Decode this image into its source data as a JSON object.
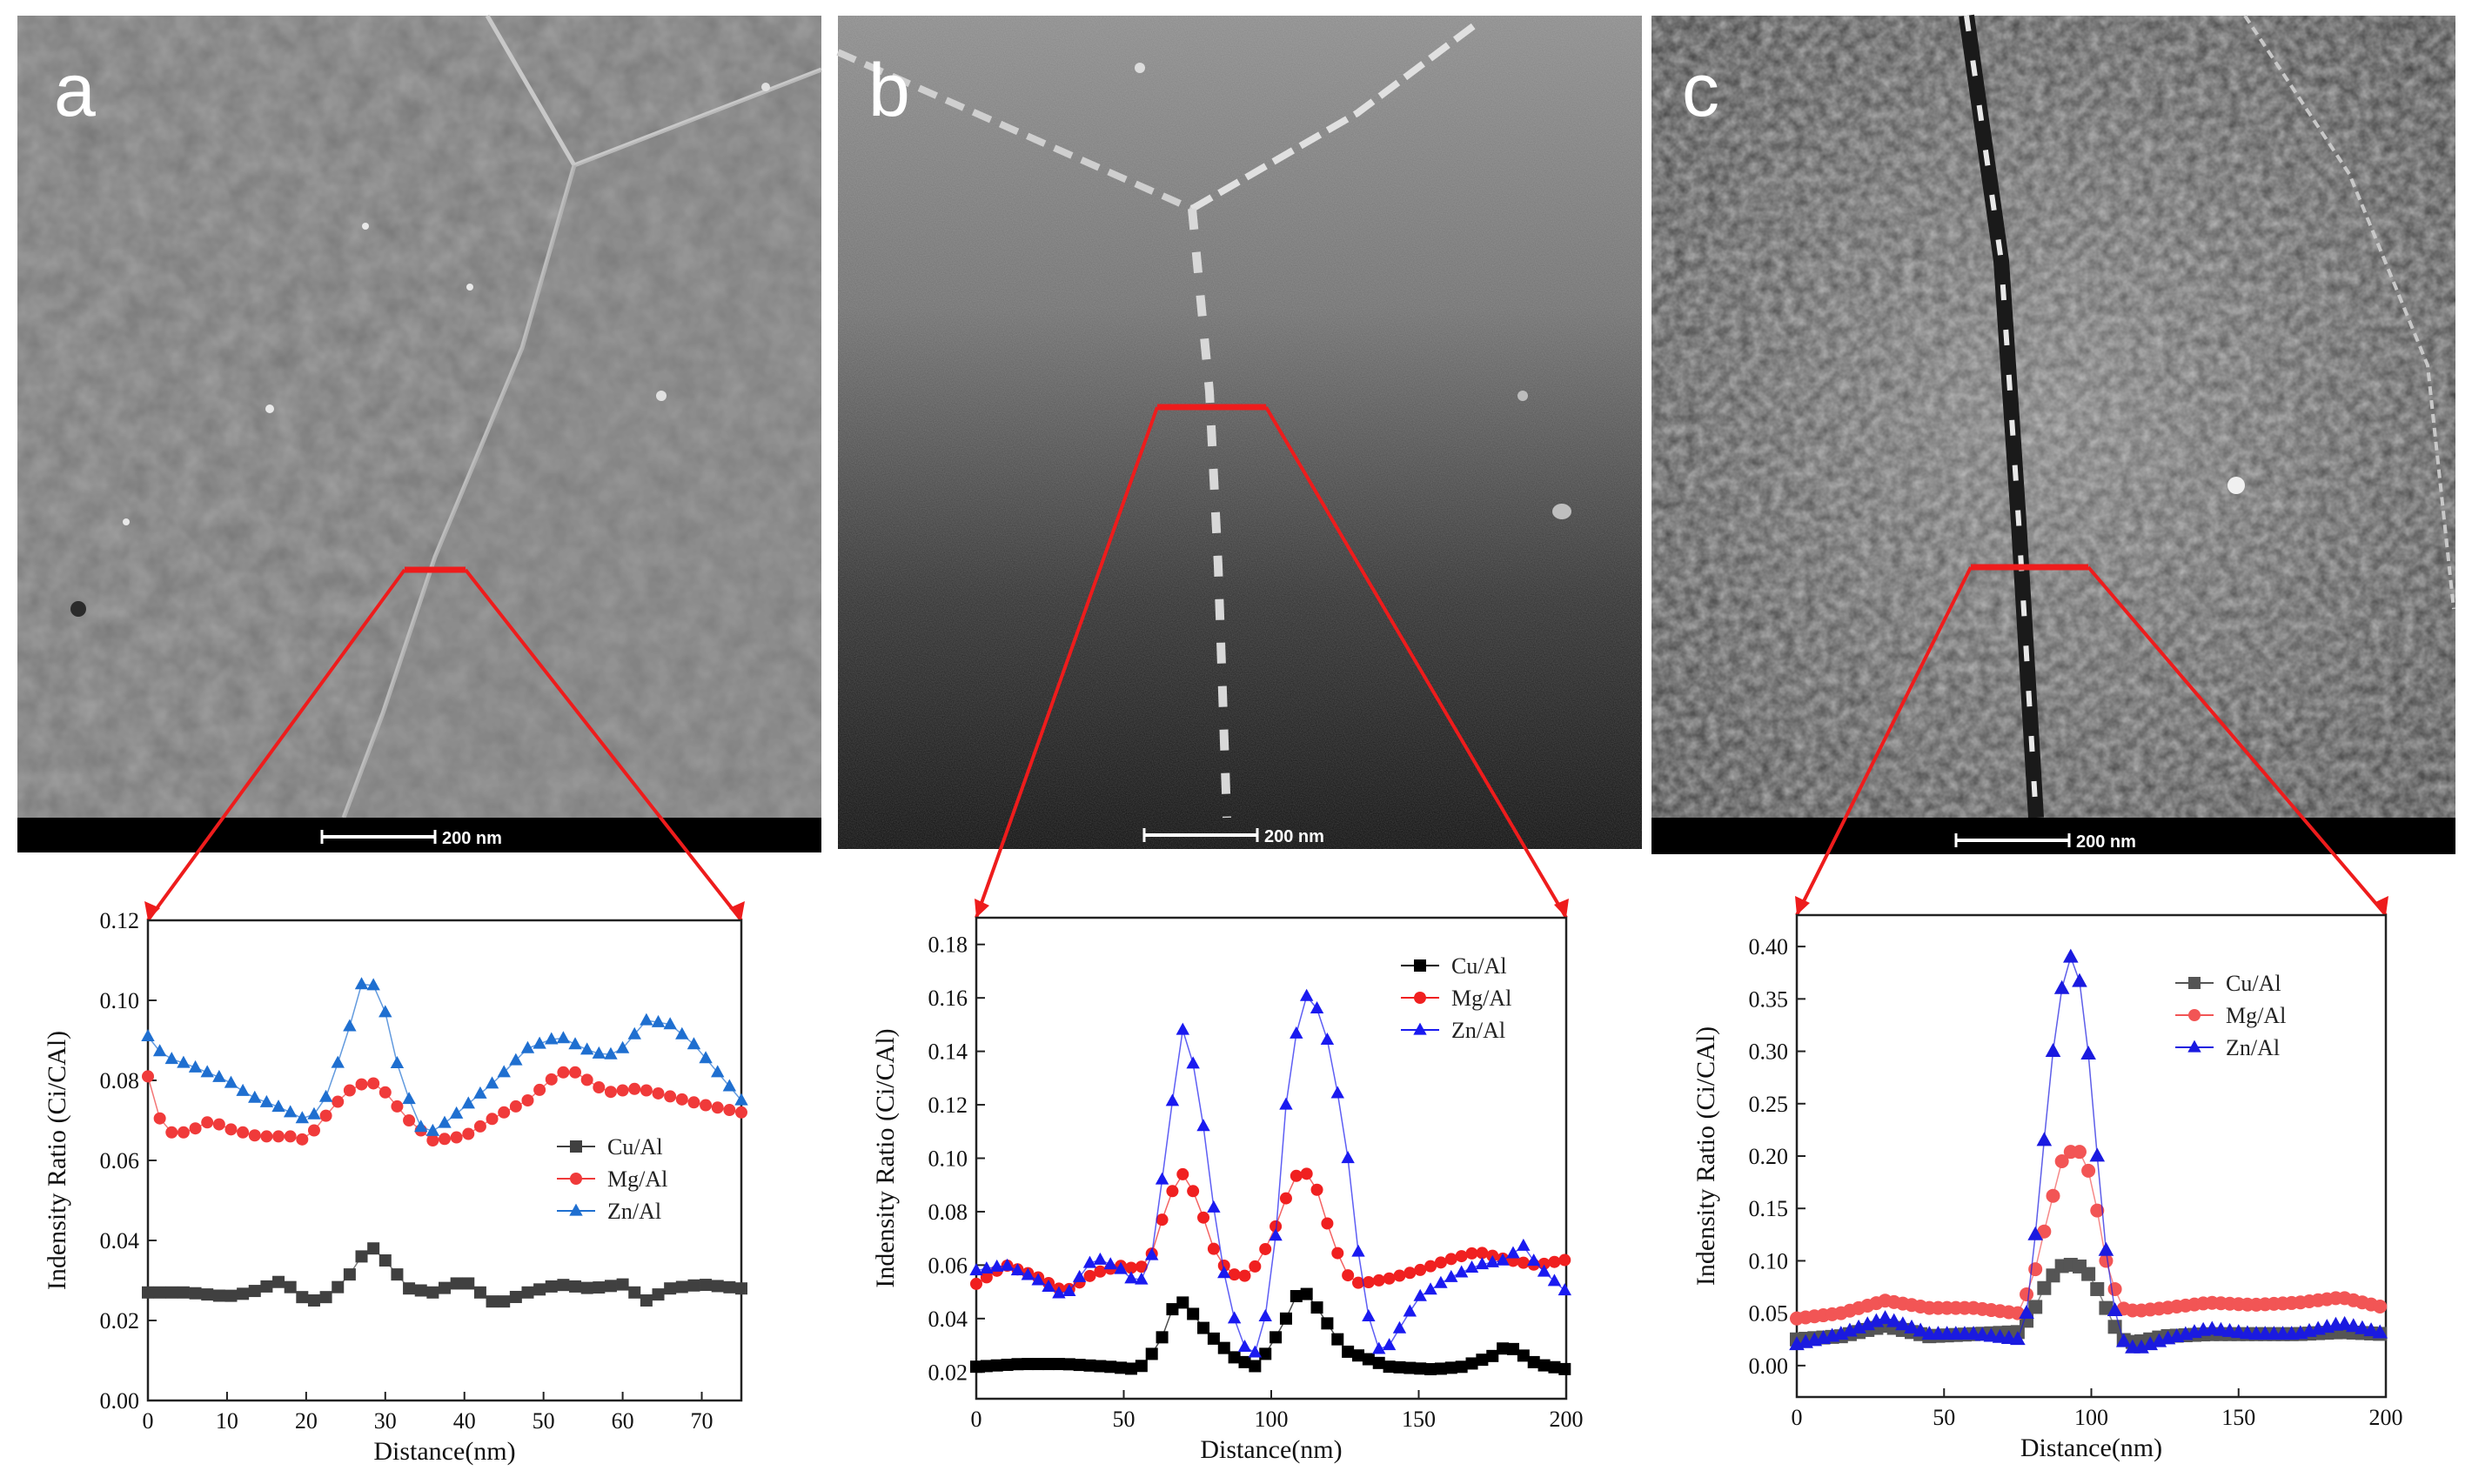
{
  "panels": [
    {
      "letter": "a",
      "scale_bar": "200 nm",
      "chart_data": {
        "type": "line",
        "title": "",
        "xlabel": "Distance(nm)",
        "ylabel": "Indensity Ratio (Ci/CAl)",
        "xlim": [
          0,
          75
        ],
        "ylim": [
          0,
          0.12
        ],
        "xticks": [
          "0",
          "10",
          "20",
          "30",
          "40",
          "50",
          "60",
          "70"
        ],
        "yticks": [
          "0.00",
          "0.02",
          "0.04",
          "0.06",
          "0.08",
          "0.10",
          "0.12"
        ],
        "legend_position": "center-right",
        "series": [
          {
            "name": "Cu/Al",
            "color": "#404040",
            "marker": "square",
            "x": [
              0,
              5,
              10,
              13,
              17,
              20,
              22,
              25,
              28,
              30,
              33,
              36,
              40,
              44,
              48,
              52,
              56,
              60,
              63,
              66,
              70,
              75
            ],
            "values": [
              0.027,
              0.027,
              0.026,
              0.027,
              0.03,
              0.025,
              0.025,
              0.03,
              0.039,
              0.035,
              0.028,
              0.027,
              0.03,
              0.024,
              0.027,
              0.029,
              0.028,
              0.029,
              0.025,
              0.028,
              0.029,
              0.028
            ]
          },
          {
            "name": "Mg/Al",
            "color": "#f03a3a",
            "marker": "circle",
            "x": [
              0,
              2,
              5,
              8,
              10,
              14,
              18,
              20,
              22,
              25,
              28,
              30,
              33,
              36,
              40,
              44,
              48,
              52,
              54,
              58,
              62,
              66,
              70,
              75
            ],
            "values": [
              0.081,
              0.067,
              0.067,
              0.07,
              0.068,
              0.066,
              0.066,
              0.065,
              0.07,
              0.077,
              0.08,
              0.077,
              0.07,
              0.065,
              0.066,
              0.071,
              0.075,
              0.082,
              0.082,
              0.077,
              0.078,
              0.076,
              0.074,
              0.072
            ]
          },
          {
            "name": "Zn/Al",
            "color": "#1f6fd0",
            "marker": "triangle",
            "x": [
              0,
              2,
              5,
              10,
              13,
              17,
              20,
              22,
              25,
              27,
              28,
              30,
              32,
              35,
              38,
              41,
              44,
              48,
              52,
              55,
              58,
              60,
              63,
              66,
              69,
              72,
              75
            ],
            "values": [
              0.091,
              0.086,
              0.084,
              0.08,
              0.076,
              0.073,
              0.07,
              0.073,
              0.09,
              0.104,
              0.106,
              0.097,
              0.08,
              0.066,
              0.07,
              0.075,
              0.08,
              0.088,
              0.091,
              0.088,
              0.086,
              0.088,
              0.095,
              0.094,
              0.089,
              0.082,
              0.075
            ]
          }
        ]
      }
    },
    {
      "letter": "b",
      "scale_bar": "200 nm",
      "chart_data": {
        "type": "line",
        "title": "",
        "xlabel": "Distance(nm)",
        "ylabel": "Indensity Ratio (Ci/CAl)",
        "xlim": [
          0,
          200
        ],
        "ylim": [
          0.01,
          0.19
        ],
        "xticks": [
          "0",
          "50",
          "100",
          "150",
          "200"
        ],
        "yticks": [
          "0.02",
          "0.04",
          "0.06",
          "0.08",
          "0.10",
          "0.12",
          "0.14",
          "0.16",
          "0.18"
        ],
        "legend_position": "top-right",
        "series": [
          {
            "name": "Cu/Al",
            "color": "#000000",
            "marker": "square",
            "x": [
              0,
              15,
              30,
              45,
              55,
              62,
              68,
              72,
              78,
              88,
              95,
              100,
              105,
              110,
              115,
              125,
              140,
              155,
              165,
              175,
              180,
              190,
              200
            ],
            "values": [
              0.022,
              0.023,
              0.023,
              0.022,
              0.021,
              0.03,
              0.048,
              0.044,
              0.035,
              0.025,
              0.022,
              0.03,
              0.04,
              0.052,
              0.045,
              0.028,
              0.022,
              0.021,
              0.022,
              0.026,
              0.03,
              0.023,
              0.021
            ]
          },
          {
            "name": "Mg/Al",
            "color": "#f02020",
            "marker": "circle",
            "x": [
              0,
              10,
              20,
              30,
              40,
              50,
              55,
              60,
              65,
              70,
              75,
              80,
              85,
              90,
              95,
              100,
              105,
              110,
              115,
              120,
              125,
              130,
              140,
              150,
              160,
              170,
              180,
              190,
              200
            ],
            "values": [
              0.053,
              0.06,
              0.056,
              0.05,
              0.057,
              0.06,
              0.058,
              0.065,
              0.085,
              0.094,
              0.085,
              0.067,
              0.058,
              0.055,
              0.06,
              0.07,
              0.085,
              0.097,
              0.09,
              0.072,
              0.057,
              0.053,
              0.055,
              0.058,
              0.062,
              0.065,
              0.062,
              0.06,
              0.062
            ]
          },
          {
            "name": "Zn/Al",
            "color": "#1a1af0",
            "marker": "triangle",
            "x": [
              0,
              10,
              20,
              30,
              40,
              50,
              55,
              60,
              65,
              70,
              75,
              80,
              85,
              90,
              95,
              100,
              105,
              110,
              113,
              118,
              125,
              130,
              135,
              140,
              150,
              160,
              170,
              180,
              185,
              190,
              195,
              200
            ],
            "values": [
              0.058,
              0.06,
              0.055,
              0.048,
              0.063,
              0.058,
              0.052,
              0.065,
              0.11,
              0.148,
              0.13,
              0.085,
              0.05,
              0.03,
              0.027,
              0.05,
              0.12,
              0.158,
              0.162,
              0.15,
              0.11,
              0.06,
              0.028,
              0.03,
              0.048,
              0.055,
              0.06,
              0.062,
              0.068,
              0.06,
              0.055,
              0.05
            ]
          }
        ]
      }
    },
    {
      "letter": "c",
      "scale_bar": "200 nm",
      "chart_data": {
        "type": "line",
        "title": "",
        "xlabel": "Distance(nm)",
        "ylabel": "Indensity Ratio (Ci/CAl)",
        "xlim": [
          0,
          200
        ],
        "ylim": [
          -0.03,
          0.43
        ],
        "xticks": [
          "0",
          "50",
          "100",
          "150",
          "200"
        ],
        "yticks": [
          "0.00",
          "0.05",
          "0.10",
          "0.15",
          "0.20",
          "0.25",
          "0.30",
          "0.35",
          "0.40"
        ],
        "legend_position": "top-right",
        "series": [
          {
            "name": "Cu/Al",
            "color": "#555555",
            "marker": "square",
            "x": [
              0,
              15,
              30,
              45,
              60,
              75,
              80,
              85,
              90,
              95,
              100,
              105,
              110,
              115,
              125,
              140,
              155,
              170,
              185,
              200
            ],
            "values": [
              0.025,
              0.028,
              0.038,
              0.028,
              0.03,
              0.032,
              0.05,
              0.08,
              0.095,
              0.097,
              0.085,
              0.055,
              0.025,
              0.022,
              0.028,
              0.03,
              0.03,
              0.03,
              0.032,
              0.03
            ]
          },
          {
            "name": "Mg/Al",
            "color": "#f25555",
            "marker": "circle",
            "x": [
              0,
              15,
              30,
              45,
              60,
              75,
              80,
              85,
              90,
              95,
              100,
              105,
              110,
              115,
              125,
              140,
              155,
              170,
              185,
              200
            ],
            "values": [
              0.045,
              0.05,
              0.062,
              0.055,
              0.055,
              0.05,
              0.08,
              0.14,
              0.195,
              0.21,
              0.18,
              0.1,
              0.055,
              0.052,
              0.055,
              0.06,
              0.058,
              0.06,
              0.065,
              0.055
            ]
          },
          {
            "name": "Zn/Al",
            "color": "#1a1ae0",
            "marker": "triangle",
            "x": [
              0,
              15,
              30,
              45,
              60,
              75,
              78,
              82,
              86,
              90,
              93,
              95,
              98,
              102,
              106,
              110,
              115,
              125,
              140,
              155,
              170,
              185,
              200
            ],
            "values": [
              0.02,
              0.03,
              0.045,
              0.03,
              0.03,
              0.025,
              0.05,
              0.15,
              0.28,
              0.36,
              0.39,
              0.385,
              0.33,
              0.2,
              0.08,
              0.025,
              0.015,
              0.025,
              0.035,
              0.03,
              0.03,
              0.04,
              0.03
            ]
          }
        ]
      }
    }
  ]
}
